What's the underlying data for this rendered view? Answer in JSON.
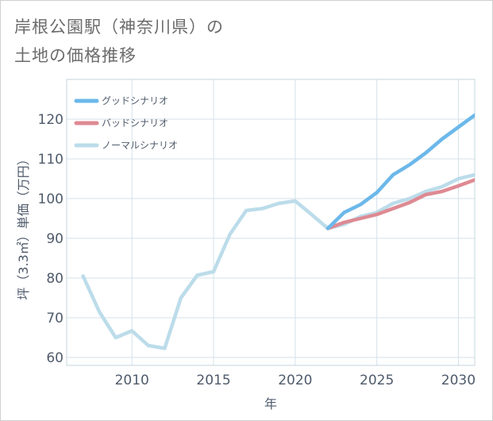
{
  "title": {
    "line1": "岸根公園駅（神奈川県）の",
    "line2": "土地の価格推移"
  },
  "colors": {
    "good": "#6cb8ea",
    "bad": "#de8a93",
    "normal": "#bcdcea",
    "grid": "#d4e2ea",
    "text": "#4f5b6b"
  },
  "chart_data": {
    "type": "line",
    "title": "岸根公園駅（神奈川県）の土地の価格推移",
    "xlabel": "年",
    "ylabel": "坪（3.3㎡）単価（万円）",
    "xlim": [
      2006,
      2031
    ],
    "ylim": [
      58,
      130
    ],
    "xticks": [
      2010,
      2015,
      2020,
      2025,
      2030
    ],
    "yticks": [
      60,
      70,
      80,
      90,
      100,
      110,
      120
    ],
    "legend_position": "top-left",
    "series": [
      {
        "name": "グッドシナリオ",
        "color": "#6cb8ea",
        "x": [
          2022,
          2023,
          2024,
          2025,
          2026,
          2027,
          2028,
          2029,
          2030,
          2031
        ],
        "y": [
          92.5,
          96.5,
          98.5,
          101.5,
          106,
          108.5,
          111.5,
          115,
          118,
          121
        ]
      },
      {
        "name": "バッドシナリオ",
        "color": "#de8a93",
        "x": [
          2022,
          2023,
          2024,
          2025,
          2026,
          2027,
          2028,
          2029,
          2030,
          2031
        ],
        "y": [
          92.5,
          94,
          95,
          96,
          97.5,
          99,
          101,
          101.8,
          103.2,
          104.7
        ]
      },
      {
        "name": "ノーマルシナリオ",
        "color": "#bcdcea",
        "x": [
          2007,
          2008,
          2009,
          2010,
          2011,
          2012,
          2013,
          2014,
          2015,
          2016,
          2017,
          2018,
          2019,
          2020,
          2021,
          2022,
          2023,
          2024,
          2025,
          2026,
          2027,
          2028,
          2029,
          2030,
          2031
        ],
        "y": [
          80.5,
          71.5,
          65,
          66.7,
          63,
          62.3,
          75,
          80.7,
          81.6,
          91,
          97,
          97.5,
          98.8,
          99.4,
          96,
          92.5,
          93.5,
          95.5,
          96.5,
          98.8,
          100,
          101.8,
          103,
          105,
          106
        ]
      }
    ]
  }
}
